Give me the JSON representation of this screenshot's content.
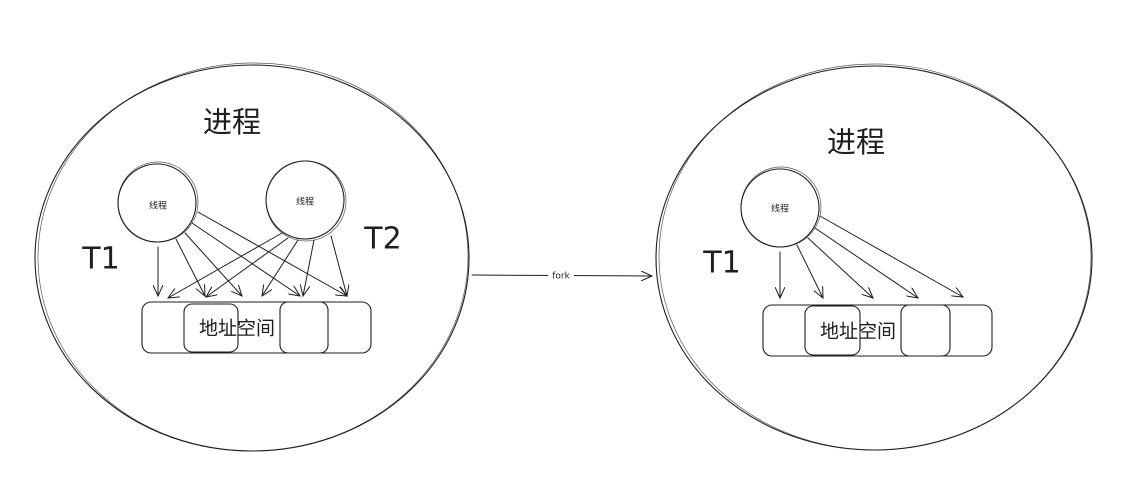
{
  "processes": [
    {
      "title": "进程",
      "threads": [
        {
          "label": "线程",
          "tag": "T1"
        },
        {
          "label": "线程",
          "tag": "T2"
        }
      ],
      "address_space": "地址空间"
    },
    {
      "title": "进程",
      "threads": [
        {
          "label": "线程",
          "tag": "T1"
        }
      ],
      "address_space": "地址空间"
    }
  ],
  "fork": {
    "label": "fork"
  },
  "colors": {
    "stroke": "#1e1e1e",
    "background": "#ffffff"
  }
}
